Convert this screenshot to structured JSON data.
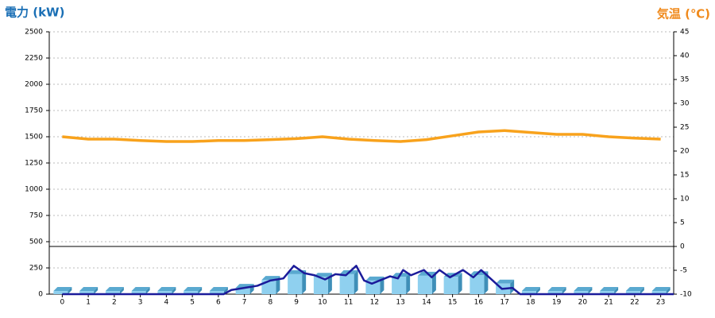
{
  "chart_data": {
    "type": "bar",
    "title": "電力 (kW)",
    "y2_title": "気温 (℃)",
    "title_color": "#1a6fb5",
    "y2_title_color": "#f08a1c",
    "categories": [
      0,
      1,
      2,
      3,
      4,
      5,
      6,
      7,
      8,
      9,
      10,
      11,
      12,
      13,
      14,
      15,
      16,
      17,
      18,
      19,
      20,
      21,
      22,
      23
    ],
    "series": [
      {
        "type": "bar",
        "color": "#8fd0ef",
        "values": [
          30,
          30,
          30,
          30,
          30,
          30,
          30,
          60,
          135,
          190,
          165,
          190,
          130,
          165,
          175,
          165,
          180,
          100,
          30,
          30,
          30,
          30,
          30,
          30
        ]
      },
      {
        "type": "line",
        "color": "#1b1b9a",
        "x": [
          0,
          6.2,
          6.5,
          7,
          7.5,
          8,
          8.5,
          8.9,
          9.3,
          9.7,
          10.1,
          10.5,
          10.9,
          11.3,
          11.6,
          11.9,
          12.2,
          12.6,
          12.9,
          13.1,
          13.4,
          13.9,
          14.2,
          14.5,
          14.9,
          15.4,
          15.8,
          16.1,
          16.5,
          16.9,
          17.3,
          17.6,
          23.5
        ],
        "values": [
          0,
          0,
          40,
          60,
          80,
          130,
          150,
          270,
          200,
          180,
          140,
          190,
          180,
          270,
          130,
          100,
          130,
          170,
          150,
          230,
          180,
          230,
          160,
          230,
          160,
          230,
          160,
          230,
          140,
          50,
          60,
          0,
          0
        ]
      },
      {
        "type": "line",
        "axis": "y2",
        "color": "#f8a21c",
        "x": [
          0,
          1,
          2,
          3,
          4,
          5,
          6,
          7,
          8,
          9,
          10,
          11,
          12,
          13,
          14,
          15,
          16,
          17,
          18,
          19,
          20,
          21,
          22,
          23
        ],
        "values": [
          23,
          22.5,
          22.5,
          22.2,
          22,
          22,
          22.2,
          22.2,
          22.4,
          22.6,
          23,
          22.5,
          22.2,
          22,
          22.4,
          23.2,
          24,
          24.3,
          23.9,
          23.5,
          23.5,
          23,
          22.7,
          22.5
        ]
      }
    ],
    "ylim": [
      0,
      2500
    ],
    "yticks": [
      0,
      250,
      500,
      750,
      1000,
      1250,
      1500,
      1750,
      2000,
      2250,
      2500
    ],
    "y2lim": [
      -10,
      45
    ],
    "y2ticks": [
      -10,
      -5,
      0,
      5,
      10,
      15,
      20,
      25,
      30,
      35,
      40,
      45
    ],
    "grid": true
  }
}
